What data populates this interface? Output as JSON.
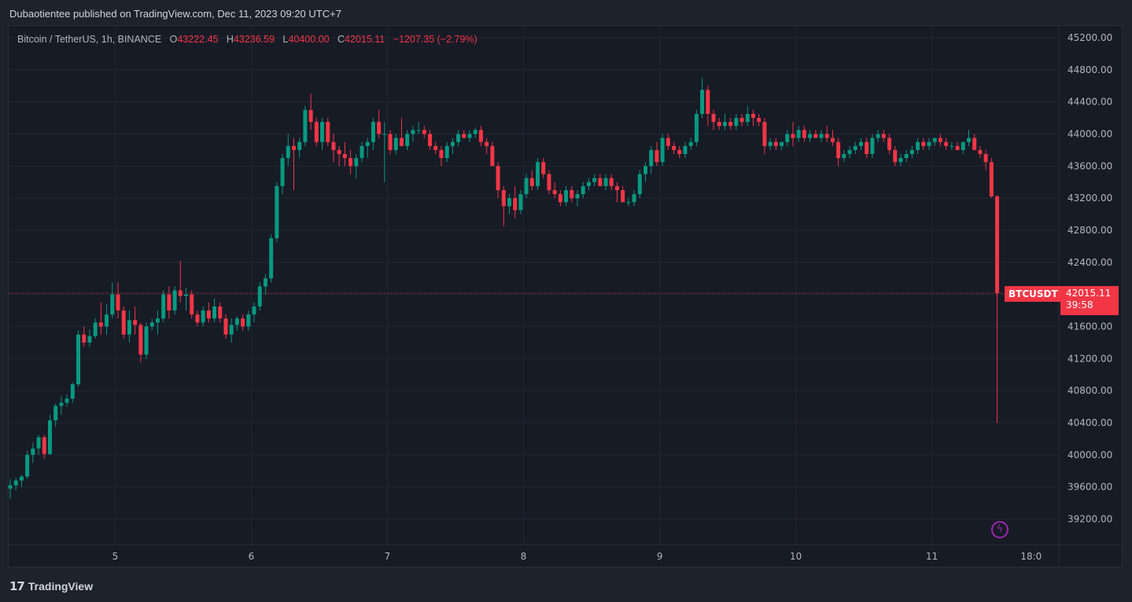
{
  "header": {
    "published": "Dubaotientee published on TradingView.com, Dec 11, 2023 09:20 UTC+7"
  },
  "legend": {
    "symbol": "Bitcoin / TetherUS, 1h, BINANCE",
    "o_label": "O",
    "o": "43222.45",
    "h_label": "H",
    "h": "43236.59",
    "l_label": "L",
    "l": "40400.00",
    "c_label": "C",
    "c": "42015.11",
    "change": "−1207.35 (−2.79%)"
  },
  "tags": {
    "symbol": "BTCUSDT",
    "price": "42015.11",
    "countdown": "39:58"
  },
  "footer": {
    "brand": "TradingView",
    "logo": "tradingview-logo-icon"
  },
  "live_icon": "lightning-icon",
  "colors": {
    "up": "#089981",
    "down": "#f23645",
    "grid": "#232632",
    "background": "#171b26"
  },
  "chart_data": {
    "type": "candlestick",
    "title": "Bitcoin / TetherUS, 1h, BINANCE",
    "xlabel": "",
    "ylabel": "",
    "x_ticks": [
      {
        "label": "5",
        "i": 18.5
      },
      {
        "label": "6",
        "i": 42.5
      },
      {
        "label": "7",
        "i": 66.5
      },
      {
        "label": "8",
        "i": 90.5
      },
      {
        "label": "9",
        "i": 114.5
      },
      {
        "label": "10",
        "i": 138.5
      },
      {
        "label": "11",
        "i": 162.5
      },
      {
        "label": "18:0",
        "i": 180
      }
    ],
    "y_ticks": [
      "45200.00",
      "44800.00",
      "44400.00",
      "44000.00",
      "43600.00",
      "43200.00",
      "42800.00",
      "42400.00",
      "42000.00",
      "41600.00",
      "41200.00",
      "40800.00",
      "40400.00",
      "40000.00",
      "39600.00",
      "39200.00"
    ],
    "ylim": [
      38850,
      45400
    ],
    "last_price": 42015.11,
    "grid": true,
    "candles": [
      [
        39580,
        39700,
        39450,
        39620
      ],
      [
        39620,
        39720,
        39560,
        39680
      ],
      [
        39680,
        39750,
        39600,
        39730
      ],
      [
        39730,
        40050,
        39700,
        40000
      ],
      [
        40000,
        40150,
        39900,
        40080
      ],
      [
        40080,
        40250,
        40000,
        40220
      ],
      [
        40220,
        40250,
        39950,
        40010
      ],
      [
        40010,
        40500,
        40000,
        40430
      ],
      [
        40430,
        40640,
        40350,
        40610
      ],
      [
        40610,
        40730,
        40500,
        40650
      ],
      [
        40650,
        40750,
        40600,
        40700
      ],
      [
        40700,
        40900,
        40650,
        40880
      ],
      [
        40880,
        41550,
        40850,
        41500
      ],
      [
        41500,
        41600,
        41350,
        41400
      ],
      [
        41400,
        41560,
        41350,
        41480
      ],
      [
        41480,
        41700,
        41450,
        41650
      ],
      [
        41650,
        41900,
        41500,
        41600
      ],
      [
        41600,
        41880,
        41500,
        41750
      ],
      [
        41750,
        42150,
        41700,
        42000
      ],
      [
        42000,
        42150,
        41700,
        41800
      ],
      [
        41800,
        41850,
        41450,
        41500
      ],
      [
        41500,
        41800,
        41400,
        41680
      ],
      [
        41680,
        41850,
        41500,
        41620
      ],
      [
        41620,
        41650,
        41150,
        41250
      ],
      [
        41250,
        41650,
        41200,
        41600
      ],
      [
        41600,
        41700,
        41550,
        41650
      ],
      [
        41650,
        41800,
        41500,
        41700
      ],
      [
        41700,
        42050,
        41650,
        42000
      ],
      [
        42000,
        42100,
        41700,
        41800
      ],
      [
        41800,
        42100,
        41750,
        42050
      ],
      [
        42050,
        42420,
        41900,
        41980
      ],
      [
        41980,
        42080,
        41800,
        42000
      ],
      [
        42000,
        42050,
        41700,
        41750
      ],
      [
        41750,
        41800,
        41600,
        41650
      ],
      [
        41650,
        41850,
        41600,
        41800
      ],
      [
        41800,
        41900,
        41650,
        41700
      ],
      [
        41700,
        41950,
        41650,
        41850
      ],
      [
        41850,
        41900,
        41650,
        41700
      ],
      [
        41700,
        41750,
        41450,
        41500
      ],
      [
        41500,
        41700,
        41400,
        41620
      ],
      [
        41620,
        41730,
        41550,
        41700
      ],
      [
        41700,
        41750,
        41550,
        41600
      ],
      [
        41600,
        41800,
        41550,
        41750
      ],
      [
        41750,
        41900,
        41650,
        41850
      ],
      [
        41850,
        42150,
        41800,
        42100
      ],
      [
        42100,
        42250,
        42000,
        42200
      ],
      [
        42200,
        42750,
        42150,
        42700
      ],
      [
        42700,
        43400,
        42650,
        43350
      ],
      [
        43350,
        43750,
        43250,
        43700
      ],
      [
        43700,
        44000,
        43600,
        43850
      ],
      [
        43850,
        43950,
        43300,
        43800
      ],
      [
        43800,
        43950,
        43700,
        43900
      ],
      [
        43900,
        44350,
        43850,
        44300
      ],
      [
        44300,
        44500,
        44050,
        44150
      ],
      [
        44150,
        44200,
        43850,
        43900
      ],
      [
        43900,
        44200,
        43800,
        44150
      ],
      [
        44150,
        44200,
        43850,
        43900
      ],
      [
        43900,
        44000,
        43650,
        43800
      ],
      [
        43800,
        43850,
        43600,
        43750
      ],
      [
        43750,
        43900,
        43600,
        43700
      ],
      [
        43700,
        43800,
        43500,
        43600
      ],
      [
        43600,
        43750,
        43450,
        43700
      ],
      [
        43700,
        43900,
        43650,
        43850
      ],
      [
        43850,
        43950,
        43700,
        43900
      ],
      [
        43900,
        44200,
        43800,
        44150
      ],
      [
        44150,
        44300,
        43950,
        44000
      ],
      [
        44000,
        44150,
        43400,
        44000
      ],
      [
        44000,
        44050,
        43750,
        43800
      ],
      [
        43800,
        44000,
        43750,
        43950
      ],
      [
        43950,
        44200,
        43850,
        43850
      ],
      [
        43850,
        44050,
        43800,
        44000
      ],
      [
        44000,
        44100,
        43900,
        44050
      ],
      [
        44050,
        44150,
        44000,
        44050
      ],
      [
        44050,
        44100,
        43950,
        44000
      ],
      [
        44000,
        44050,
        43800,
        43850
      ],
      [
        43850,
        43900,
        43750,
        43800
      ],
      [
        43800,
        43850,
        43600,
        43700
      ],
      [
        43700,
        43900,
        43650,
        43850
      ],
      [
        43850,
        43950,
        43750,
        43900
      ],
      [
        43900,
        44050,
        43850,
        44000
      ],
      [
        44000,
        44050,
        43950,
        43950
      ],
      [
        43950,
        44050,
        43900,
        44000
      ],
      [
        44000,
        44080,
        43950,
        44050
      ],
      [
        44050,
        44100,
        43850,
        43900
      ],
      [
        43900,
        43950,
        43750,
        43850
      ],
      [
        43850,
        43900,
        43650,
        43600
      ],
      [
        43600,
        43650,
        43200,
        43300
      ],
      [
        43300,
        43350,
        42850,
        43100
      ],
      [
        43100,
        43250,
        43000,
        43200
      ],
      [
        43200,
        43350,
        42950,
        43050
      ],
      [
        43050,
        43300,
        43000,
        43250
      ],
      [
        43250,
        43500,
        43200,
        43450
      ],
      [
        43450,
        43550,
        43300,
        43350
      ],
      [
        43350,
        43700,
        43300,
        43650
      ],
      [
        43650,
        43700,
        43450,
        43500
      ],
      [
        43500,
        43550,
        43250,
        43300
      ],
      [
        43300,
        43400,
        43200,
        43250
      ],
      [
        43250,
        43300,
        43100,
        43150
      ],
      [
        43150,
        43350,
        43100,
        43300
      ],
      [
        43300,
        43350,
        43150,
        43200
      ],
      [
        43200,
        43300,
        43100,
        43250
      ],
      [
        43250,
        43400,
        43200,
        43350
      ],
      [
        43350,
        43450,
        43300,
        43400
      ],
      [
        43400,
        43500,
        43350,
        43450
      ],
      [
        43450,
        43500,
        43350,
        43350
      ],
      [
        43350,
        43500,
        43300,
        43450
      ],
      [
        43450,
        43500,
        43300,
        43350
      ],
      [
        43350,
        43400,
        43150,
        43300
      ],
      [
        43300,
        43350,
        43150,
        43150
      ],
      [
        43150,
        43200,
        43100,
        43150
      ],
      [
        43150,
        43300,
        43100,
        43250
      ],
      [
        43250,
        43550,
        43200,
        43500
      ],
      [
        43500,
        43650,
        43400,
        43600
      ],
      [
        43600,
        43850,
        43500,
        43800
      ],
      [
        43800,
        43900,
        43600,
        43650
      ],
      [
        43650,
        44000,
        43600,
        43950
      ],
      [
        43950,
        44000,
        43800,
        43850
      ],
      [
        43850,
        43900,
        43750,
        43800
      ],
      [
        43800,
        43850,
        43700,
        43750
      ],
      [
        43750,
        43900,
        43700,
        43850
      ],
      [
        43850,
        43950,
        43800,
        43900
      ],
      [
        43900,
        44300,
        43850,
        44250
      ],
      [
        44250,
        44700,
        44200,
        44550
      ],
      [
        44550,
        44600,
        44100,
        44250
      ],
      [
        44250,
        44300,
        44050,
        44150
      ],
      [
        44150,
        44200,
        44050,
        44100
      ],
      [
        44100,
        44250,
        44050,
        44150
      ],
      [
        44150,
        44200,
        44050,
        44100
      ],
      [
        44100,
        44250,
        44050,
        44200
      ],
      [
        44200,
        44250,
        44100,
        44150
      ],
      [
        44150,
        44350,
        44100,
        44250
      ],
      [
        44250,
        44300,
        44100,
        44200
      ],
      [
        44200,
        44250,
        44100,
        44150
      ],
      [
        44150,
        44200,
        43750,
        43850
      ],
      [
        43850,
        43950,
        43800,
        43900
      ],
      [
        43900,
        43950,
        43800,
        43850
      ],
      [
        43850,
        43900,
        43800,
        43900
      ],
      [
        43900,
        44050,
        43850,
        44000
      ],
      [
        44000,
        44150,
        43850,
        43950
      ],
      [
        43950,
        44100,
        43900,
        44050
      ],
      [
        44050,
        44100,
        43900,
        43950
      ],
      [
        43950,
        44050,
        43900,
        44000
      ],
      [
        44000,
        44050,
        43950,
        43950
      ],
      [
        43950,
        44050,
        43900,
        44000
      ],
      [
        44000,
        44100,
        43900,
        43950
      ],
      [
        43950,
        44050,
        43850,
        43900
      ],
      [
        43900,
        43950,
        43600,
        43700
      ],
      [
        43700,
        43800,
        43650,
        43750
      ],
      [
        43750,
        43850,
        43700,
        43800
      ],
      [
        43800,
        43900,
        43750,
        43850
      ],
      [
        43850,
        43950,
        43800,
        43900
      ],
      [
        43900,
        43950,
        43700,
        43750
      ],
      [
        43750,
        44000,
        43700,
        43950
      ],
      [
        43950,
        44050,
        43900,
        44000
      ],
      [
        44000,
        44050,
        43900,
        43950
      ],
      [
        43950,
        44000,
        43750,
        43800
      ],
      [
        43800,
        43850,
        43600,
        43650
      ],
      [
        43650,
        43750,
        43600,
        43700
      ],
      [
        43700,
        43800,
        43650,
        43750
      ],
      [
        43750,
        43850,
        43700,
        43800
      ],
      [
        43800,
        43950,
        43750,
        43900
      ],
      [
        43900,
        43950,
        43800,
        43850
      ],
      [
        43850,
        43950,
        43800,
        43900
      ],
      [
        43900,
        43950,
        43850,
        43950
      ],
      [
        43950,
        44000,
        43850,
        43900
      ],
      [
        43900,
        43950,
        43800,
        43850
      ],
      [
        43850,
        43900,
        43800,
        43850
      ],
      [
        43850,
        43900,
        43800,
        43800
      ],
      [
        43800,
        43900,
        43750,
        43900
      ],
      [
        43900,
        44050,
        43850,
        43950
      ],
      [
        43950,
        44000,
        43800,
        43800
      ],
      [
        43800,
        43850,
        43700,
        43750
      ],
      [
        43750,
        43800,
        43550,
        43650
      ],
      [
        43650,
        43700,
        43200,
        43222.45
      ],
      [
        43222.45,
        43236.59,
        40400,
        42015.11
      ]
    ]
  }
}
